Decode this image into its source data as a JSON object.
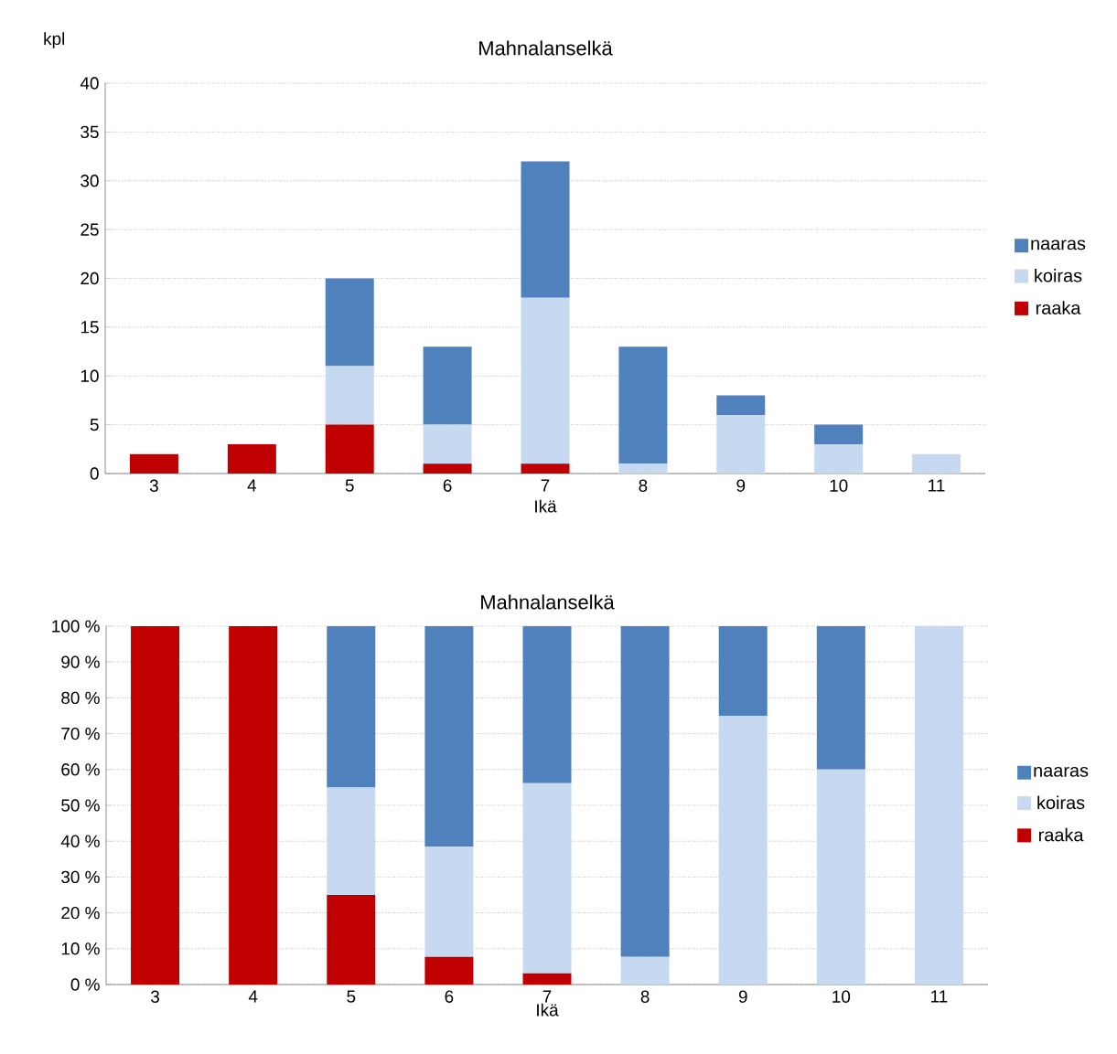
{
  "chart_data": [
    {
      "type": "bar",
      "title": "Mahnalanselkä",
      "xlabel": "Ikä",
      "ylabel": "kpl",
      "categories": [
        "3",
        "4",
        "5",
        "6",
        "7",
        "8",
        "9",
        "10",
        "11"
      ],
      "stacked": true,
      "grid": "y",
      "legend": "right",
      "ylim": [
        0,
        40
      ],
      "yticks": [
        0,
        5,
        10,
        15,
        20,
        25,
        30,
        35,
        40
      ],
      "series": [
        {
          "name": "raaka",
          "color": "#c00000",
          "values": [
            2,
            3,
            5,
            1,
            1,
            null,
            null,
            null,
            null
          ]
        },
        {
          "name": "koiras",
          "color": "#c6d9f1",
          "values": [
            null,
            null,
            6,
            4,
            17,
            1,
            6,
            3,
            2
          ]
        },
        {
          "name": "naaras",
          "color": "#4f81bd",
          "values": [
            null,
            null,
            9,
            8,
            14,
            12,
            2,
            2,
            null
          ]
        }
      ]
    },
    {
      "type": "bar",
      "title": "Mahnalanselkä",
      "xlabel": "Ikä",
      "categories": [
        "3",
        "4",
        "5",
        "6",
        "7",
        "8",
        "9",
        "10",
        "11"
      ],
      "stacked": true,
      "grid": "y",
      "legend": "right",
      "ylim": [
        0,
        100
      ],
      "yticks": [
        {
          "value": 0,
          "label": "0 %"
        },
        {
          "value": 10,
          "label": "10 %"
        },
        {
          "value": 20,
          "label": "20 %"
        },
        {
          "value": 30,
          "label": "30 %"
        },
        {
          "value": 40,
          "label": "40 %"
        },
        {
          "value": 50,
          "label": "50 %"
        },
        {
          "value": 60,
          "label": "60 %"
        },
        {
          "value": 70,
          "label": "70 %"
        },
        {
          "value": 80,
          "label": "80 %"
        },
        {
          "value": 90,
          "label": "90 %"
        },
        {
          "value": 100,
          "label": "100 %"
        }
      ],
      "series": [
        {
          "name": "raaka",
          "color": "#c00000",
          "values": [
            100,
            100,
            25,
            7.7,
            3.1,
            null,
            null,
            null,
            null
          ]
        },
        {
          "name": "koiras",
          "color": "#c6d9f1",
          "values": [
            null,
            null,
            30,
            30.8,
            53.1,
            7.7,
            75,
            60,
            100
          ]
        },
        {
          "name": "naaras",
          "color": "#4f81bd",
          "values": [
            null,
            null,
            45,
            61.5,
            43.8,
            92.3,
            25,
            40,
            null
          ]
        }
      ]
    }
  ]
}
